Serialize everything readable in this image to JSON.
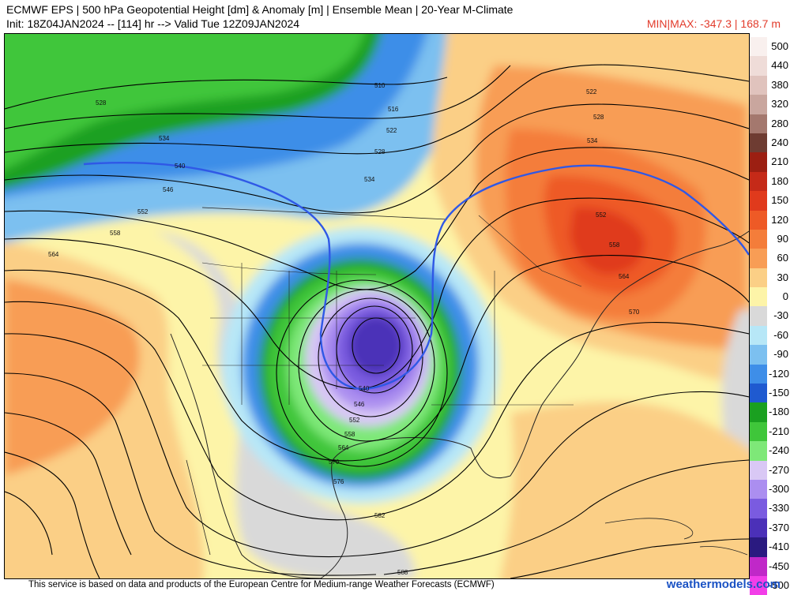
{
  "header": {
    "title_line1": "ECMWF EPS | 500 hPa Geopotential Height [dm] & Anomaly [m] | Ensemble Mean | 20-Year M-Climate",
    "title_line2": "Init: 18Z04JAN2024 -- [114] hr --> Valid Tue 12Z09JAN2024",
    "minmax": "MIN|MAX: -347.3 | 168.7 m"
  },
  "legend": {
    "unit": "m",
    "entries": [
      {
        "label": "500",
        "color": "#f9f0ee"
      },
      {
        "label": "440",
        "color": "#efdcd8"
      },
      {
        "label": "380",
        "color": "#e0c3bd"
      },
      {
        "label": "320",
        "color": "#c9a69e"
      },
      {
        "label": "280",
        "color": "#a4786e"
      },
      {
        "label": "240",
        "color": "#6e3c32"
      },
      {
        "label": "210",
        "color": "#9c1f12"
      },
      {
        "label": "180",
        "color": "#c52a18"
      },
      {
        "label": "150",
        "color": "#e03a1c"
      },
      {
        "label": "120",
        "color": "#ee5a26"
      },
      {
        "label": "90",
        "color": "#f47d3a"
      },
      {
        "label": "60",
        "color": "#f89d55"
      },
      {
        "label": "30",
        "color": "#fbcf86"
      },
      {
        "label": "0",
        "color": "#fdf4a8"
      },
      {
        "label": "-30",
        "color": "#d9d9d9"
      },
      {
        "label": "-60",
        "color": "#b7e7f7"
      },
      {
        "label": "-90",
        "color": "#7cc0f0"
      },
      {
        "label": "-120",
        "color": "#3e8ee8"
      },
      {
        "label": "-150",
        "color": "#1f5ad0"
      },
      {
        "label": "-180",
        "color": "#1aa020"
      },
      {
        "label": "-210",
        "color": "#3fc63a"
      },
      {
        "label": "-240",
        "color": "#7ee878"
      },
      {
        "label": "-270",
        "color": "#d9c8f5"
      },
      {
        "label": "-300",
        "color": "#ab8ef0"
      },
      {
        "label": "-330",
        "color": "#7a5be0"
      },
      {
        "label": "-370",
        "color": "#4b30b8"
      },
      {
        "label": "-410",
        "color": "#2a1a80"
      },
      {
        "label": "-450",
        "color": "#c028c8"
      },
      {
        "label": "-500",
        "color": "#f23ee8"
      }
    ]
  },
  "contours": {
    "labels": [
      "528",
      "534",
      "540",
      "546",
      "552",
      "558",
      "564",
      "516",
      "522",
      "528",
      "534",
      "540",
      "546",
      "552",
      "558",
      "564",
      "570",
      "576",
      "582",
      "588",
      "510",
      "528",
      "522",
      "534",
      "552",
      "558",
      "564",
      "570"
    ],
    "highlight_contour": "540",
    "line_color": "#000000",
    "highlight_color": "#2f58e6"
  },
  "footer": {
    "credit": "This service is based on data and products of the European Centre for Medium-range Weather Forecasts (ECMWF)",
    "brand": "weathermodels.com"
  }
}
